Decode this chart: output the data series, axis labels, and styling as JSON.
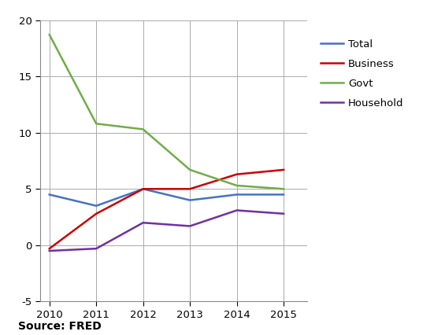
{
  "source": "Source: FRED",
  "years": [
    2010,
    2011,
    2012,
    2013,
    2014,
    2015
  ],
  "series": {
    "Total": {
      "values": [
        4.5,
        3.5,
        5.0,
        4.0,
        4.5,
        4.5
      ],
      "color": "#4472C4",
      "linewidth": 1.8
    },
    "Business": {
      "values": [
        -0.3,
        2.8,
        5.0,
        5.0,
        6.3,
        6.7
      ],
      "color": "#CC0000",
      "linewidth": 1.8
    },
    "Govt": {
      "values": [
        18.7,
        10.8,
        10.3,
        6.7,
        5.3,
        5.0
      ],
      "color": "#70AD47",
      "linewidth": 1.8
    },
    "Household": {
      "values": [
        -0.5,
        -0.3,
        2.0,
        1.7,
        3.1,
        2.8
      ],
      "color": "#7030A0",
      "linewidth": 1.8
    }
  },
  "series_order": [
    "Total",
    "Business",
    "Govt",
    "Household"
  ],
  "ylim": [
    -5,
    20
  ],
  "yticks": [
    -5,
    0,
    5,
    10,
    15,
    20
  ],
  "xlim": [
    2009.8,
    2015.5
  ],
  "xticks": [
    2010,
    2011,
    2012,
    2013,
    2014,
    2015
  ],
  "grid_color": "#AAAAAA",
  "spine_color": "#888888",
  "background_color": "#FFFFFF",
  "legend_fontsize": 9.5,
  "tick_fontsize": 9.5,
  "source_fontsize": 10
}
